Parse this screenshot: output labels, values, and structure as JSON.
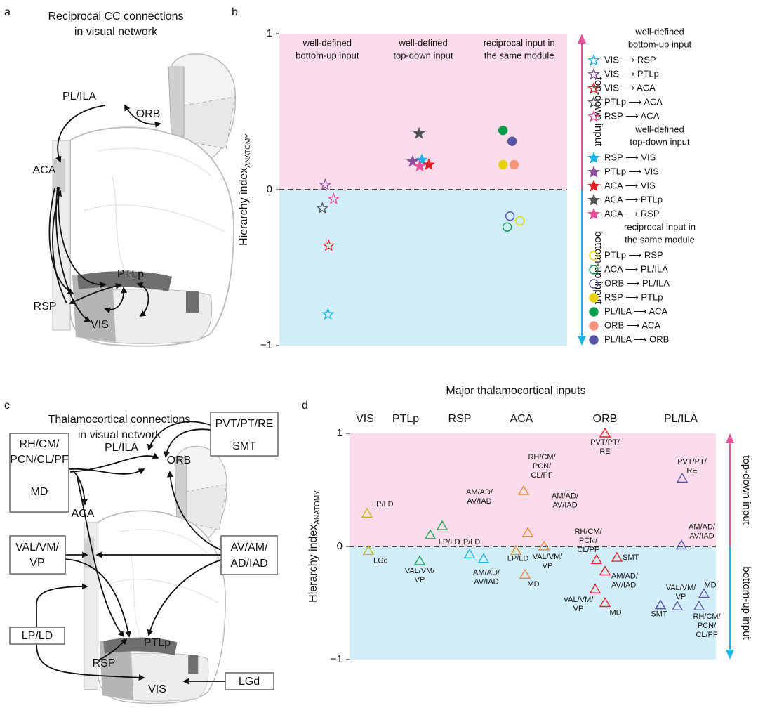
{
  "panel_labels": [
    "a",
    "b",
    "c",
    "d"
  ],
  "diagrams": [
    {
      "title": [
        "Reciprocal CC connections",
        "in visual network"
      ],
      "labels": [
        "PL/ILA",
        "ORB",
        "ACA",
        "PTLp",
        "RSP",
        "VIS"
      ]
    },
    {
      "title": [
        "Thalamocortical connections",
        "in visual network"
      ],
      "labels": [
        "PL/ILA",
        "ORB",
        "ACA",
        "PTLp",
        "RSP",
        "VIS"
      ],
      "boxes": [
        [
          "RH/CM/",
          "PCN/CL/PF",
          "MD"
        ],
        [
          "PVT/PT/RE",
          "SMT"
        ],
        [
          "VAL/VM/",
          "VP"
        ],
        [
          "AV/AM/",
          "AD/IAD"
        ],
        [
          "LP/LD"
        ],
        [
          "LGd"
        ]
      ]
    }
  ],
  "chart_data": [
    {
      "type": "scatter",
      "ylabel": "Hierarchy index",
      "ylabel_sub": "ANATOMY",
      "ylim": [
        -1,
        1
      ],
      "yticks": [
        {
          "value": -1,
          "label": "−1"
        },
        0,
        1
      ],
      "hline": 0,
      "regions": [
        {
          "label": "top-down input",
          "fill": "#fadcea",
          "arrow": "#e0559b"
        },
        {
          "label": "bottom-up input",
          "fill": "#d2eefa",
          "arrow": "#1cb4e6"
        }
      ],
      "groups": [
        {
          "name": [
            "well-defined",
            "bottom-up input"
          ],
          "series": [
            {
              "name": "VIS ⟶ RSP",
              "color": "#1ab7ea",
              "marker": "star",
              "filled": false,
              "value": -0.8
            },
            {
              "name": "VIS ⟶ PTLp",
              "color": "#8e4fa0",
              "marker": "star",
              "filled": false,
              "value": 0.03
            },
            {
              "name": "VIS ⟶ ACA",
              "color": "#e62229",
              "marker": "star",
              "filled": false,
              "value": -0.36
            },
            {
              "name": "PTLp ⟶ ACA",
              "color": "#555555",
              "marker": "star",
              "filled": false,
              "value": -0.12
            },
            {
              "name": "RSP ⟶ ACA",
              "color": "#ec4f9c",
              "marker": "star",
              "filled": false,
              "value": -0.06
            }
          ]
        },
        {
          "name": [
            "well-defined",
            "top-down input"
          ],
          "series": [
            {
              "name": "RSP ⟶ VIS",
              "color": "#1ab7ea",
              "marker": "star",
              "filled": true,
              "value": 0.19
            },
            {
              "name": "PTLp ⟶ VIS",
              "color": "#8e4fa0",
              "marker": "star",
              "filled": true,
              "value": 0.18
            },
            {
              "name": "ACA ⟶ VIS",
              "color": "#e62229",
              "marker": "star",
              "filled": true,
              "value": 0.16
            },
            {
              "name": "ACA ⟶ PTLp",
              "color": "#555555",
              "marker": "star",
              "filled": true,
              "value": 0.36
            },
            {
              "name": "ACA ⟶ RSP",
              "color": "#ec4f9c",
              "marker": "star",
              "filled": true,
              "value": 0.15
            }
          ]
        },
        {
          "name": [
            "reciprocal input in",
            "the same module"
          ],
          "series": [
            {
              "name": "PTLp ⟶ RSP",
              "color": "#e8d10c",
              "marker": "circle",
              "filled": false,
              "value": -0.2
            },
            {
              "name": "ACA ⟶ PL/ILA",
              "color": "#0a9c4b",
              "marker": "circle",
              "filled": false,
              "value": -0.24
            },
            {
              "name": "ORB ⟶ PL/ILA",
              "color": "#5553a4",
              "marker": "circle",
              "filled": false,
              "value": -0.17
            },
            {
              "name": "RSP ⟶ PTLp",
              "color": "#e8d10c",
              "marker": "circle",
              "filled": true,
              "value": 0.16
            },
            {
              "name": "PL/ILA ⟶ ACA",
              "color": "#0a9c4b",
              "marker": "circle",
              "filled": true,
              "value": 0.38
            },
            {
              "name": "ORB ⟶ ACA",
              "color": "#f4957b",
              "marker": "circle",
              "filled": true,
              "value": 0.16
            },
            {
              "name": "PL/ILA ⟶ ORB",
              "color": "#5553a4",
              "marker": "circle",
              "filled": true,
              "value": 0.31
            }
          ]
        }
      ]
    },
    {
      "type": "scatter",
      "title": "Major thalamocortical inputs",
      "ylabel": "Hierarchy index",
      "ylabel_sub": "ANATOMY",
      "ylim": [
        -1,
        1
      ],
      "yticks": [
        {
          "value": -1,
          "label": "−1"
        },
        0,
        1
      ],
      "hline": 0,
      "marker": "triangle",
      "regions": [
        {
          "label": "top-down input",
          "fill": "#fadcea",
          "arrow": "#e0559b"
        },
        {
          "label": "bottom-up input",
          "fill": "#d2eefa",
          "arrow": "#1cb4e6"
        }
      ],
      "series": [
        {
          "name": "VIS",
          "color": "#c4b816",
          "values": [
            0.29,
            -0.04
          ],
          "labels": [
            [
              "LP/LD"
            ],
            [
              "LGd"
            ]
          ]
        },
        {
          "name": "PTLp",
          "color": "#1aa45b",
          "values": [
            0.18,
            0.1,
            -0.13
          ],
          "labels": [
            [
              "AM/AD/",
              "AV/IAD"
            ],
            [
              "LP/LD"
            ],
            [
              "VAL/VM/",
              "VP"
            ]
          ]
        },
        {
          "name": "RSP",
          "color": "#1ab7ea",
          "values": [
            -0.07,
            -0.11
          ],
          "labels": [
            [
              "LP/LD"
            ],
            [
              "AM/AD/",
              "AV/IAD"
            ]
          ]
        },
        {
          "name": "ACA",
          "color": "#f08a3c",
          "values": [
            0.49,
            0.12,
            -0.04,
            0.0,
            -0.25
          ],
          "labels": [
            [
              "RH/CM/",
              "PCN/",
              "CL/PF"
            ],
            [
              "AM/AD/",
              "AV/IAD"
            ],
            [
              "LP/LD"
            ],
            [
              "VAL/VM/",
              "VP"
            ],
            [
              "MD"
            ]
          ]
        },
        {
          "name": "ORB",
          "color": "#e62229",
          "values": [
            1.0,
            -0.12,
            -0.1,
            -0.22,
            -0.38,
            -0.5
          ],
          "labels": [
            [
              "PVT/PT/",
              "RE"
            ],
            [
              "RH/CM/",
              "PCN/",
              "CL/PF"
            ],
            [
              "SMT"
            ],
            [
              "AM/AD/",
              "AV/IAD"
            ],
            [
              "VAL/VM/",
              "VP"
            ],
            [
              "MD"
            ]
          ]
        },
        {
          "name": "PL/ILA",
          "color": "#5553a4",
          "values": [
            0.6,
            0.01,
            -0.42,
            -0.52,
            -0.53,
            -0.53
          ],
          "labels": [
            [
              "PVT/PT/",
              "RE"
            ],
            [
              "AM/AD/",
              "AV/IAD"
            ],
            [
              "MD"
            ],
            [
              "SMT"
            ],
            [
              "VAL/VM/",
              "VP"
            ],
            [
              "RH/CM/",
              "PCN/",
              "CL/PF"
            ]
          ]
        }
      ]
    }
  ]
}
